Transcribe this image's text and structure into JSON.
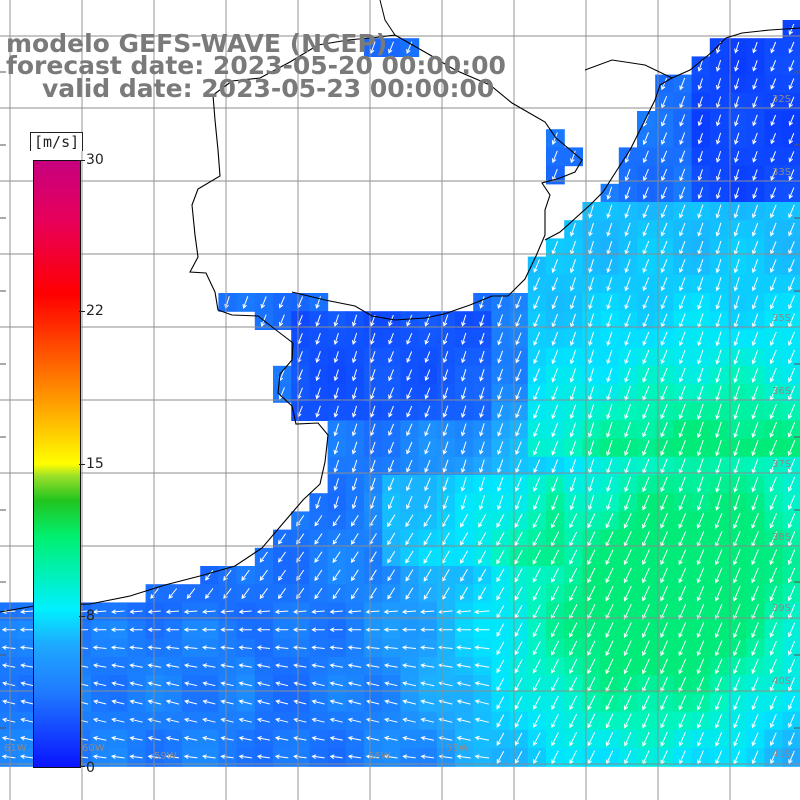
{
  "header": {
    "title": "modelo GEFS-WAVE (NCEP)",
    "forecast": "forecast date: 2023-05-20 00:00:00",
    "valid": "valid date: 2023-05-23 00:00:00"
  },
  "colorbar": {
    "unit": "[m/s]",
    "ticks": [
      {
        "label": "30",
        "value": 30
      },
      {
        "label": "22",
        "value": 22
      },
      {
        "label": "15",
        "value": 15
      },
      {
        "label": "8",
        "value": 8
      },
      {
        "label": "0",
        "value": 0
      }
    ],
    "min": 0,
    "max": 30
  },
  "latitude_labels": [
    "32S",
    "33S",
    "35S",
    "36S",
    "37S",
    "38S",
    "39S",
    "40S",
    "41S"
  ],
  "longitude_labels": [
    "61W",
    "60W",
    "59W",
    "56W",
    "55W"
  ],
  "colors": {
    "header_text": "#7a7a7a",
    "grid": "#8c8c8c",
    "coast": "#000000",
    "arrow": "#ffffff"
  }
}
